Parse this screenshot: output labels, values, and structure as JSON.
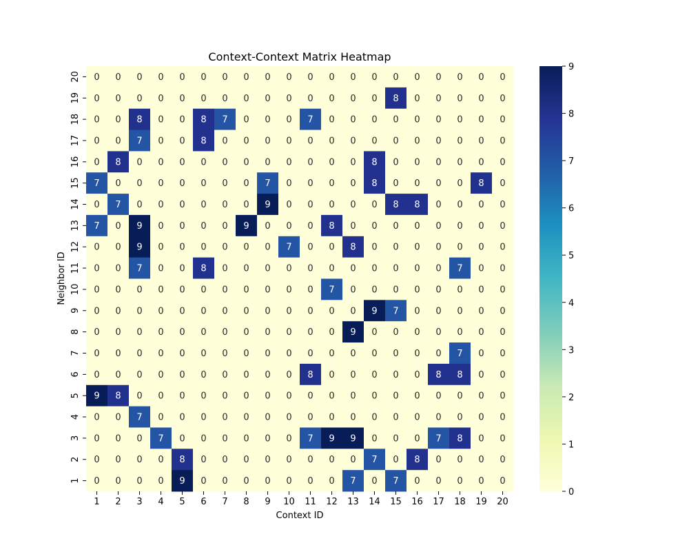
{
  "chart_data": {
    "type": "heatmap",
    "title": "Context-Context Matrix Heatmap",
    "xlabel": "Context ID",
    "ylabel": "Neighbor ID",
    "x_categories": [
      "1",
      "2",
      "3",
      "4",
      "5",
      "6",
      "7",
      "8",
      "9",
      "10",
      "11",
      "12",
      "13",
      "14",
      "15",
      "16",
      "17",
      "18",
      "19",
      "20"
    ],
    "y_categories": [
      "20",
      "19",
      "18",
      "17",
      "16",
      "15",
      "14",
      "13",
      "12",
      "11",
      "10",
      "9",
      "8",
      "7",
      "6",
      "5",
      "4",
      "3",
      "2",
      "1"
    ],
    "values": [
      [
        0,
        0,
        0,
        0,
        0,
        0,
        0,
        0,
        0,
        0,
        0,
        0,
        0,
        0,
        0,
        0,
        0,
        0,
        0,
        0
      ],
      [
        0,
        0,
        0,
        0,
        0,
        0,
        0,
        0,
        0,
        0,
        0,
        0,
        0,
        0,
        8,
        0,
        0,
        0,
        0,
        0
      ],
      [
        0,
        0,
        8,
        0,
        0,
        8,
        7,
        0,
        0,
        0,
        7,
        0,
        0,
        0,
        0,
        0,
        0,
        0,
        0,
        0
      ],
      [
        0,
        0,
        7,
        0,
        0,
        8,
        0,
        0,
        0,
        0,
        0,
        0,
        0,
        0,
        0,
        0,
        0,
        0,
        0,
        0
      ],
      [
        0,
        8,
        0,
        0,
        0,
        0,
        0,
        0,
        0,
        0,
        0,
        0,
        0,
        8,
        0,
        0,
        0,
        0,
        0,
        0
      ],
      [
        7,
        0,
        0,
        0,
        0,
        0,
        0,
        0,
        7,
        0,
        0,
        0,
        0,
        8,
        0,
        0,
        0,
        0,
        8,
        0
      ],
      [
        0,
        7,
        0,
        0,
        0,
        0,
        0,
        0,
        9,
        0,
        0,
        0,
        0,
        0,
        8,
        8,
        0,
        0,
        0,
        0
      ],
      [
        7,
        0,
        9,
        0,
        0,
        0,
        0,
        9,
        0,
        0,
        0,
        8,
        0,
        0,
        0,
        0,
        0,
        0,
        0,
        0
      ],
      [
        0,
        0,
        9,
        0,
        0,
        0,
        0,
        0,
        0,
        7,
        0,
        0,
        8,
        0,
        0,
        0,
        0,
        0,
        0,
        0
      ],
      [
        0,
        0,
        7,
        0,
        0,
        8,
        0,
        0,
        0,
        0,
        0,
        0,
        0,
        0,
        0,
        0,
        0,
        7,
        0,
        0
      ],
      [
        0,
        0,
        0,
        0,
        0,
        0,
        0,
        0,
        0,
        0,
        0,
        7,
        0,
        0,
        0,
        0,
        0,
        0,
        0,
        0
      ],
      [
        0,
        0,
        0,
        0,
        0,
        0,
        0,
        0,
        0,
        0,
        0,
        0,
        0,
        9,
        7,
        0,
        0,
        0,
        0,
        0
      ],
      [
        0,
        0,
        0,
        0,
        0,
        0,
        0,
        0,
        0,
        0,
        0,
        0,
        9,
        0,
        0,
        0,
        0,
        0,
        0,
        0
      ],
      [
        0,
        0,
        0,
        0,
        0,
        0,
        0,
        0,
        0,
        0,
        0,
        0,
        0,
        0,
        0,
        0,
        0,
        7,
        0,
        0
      ],
      [
        0,
        0,
        0,
        0,
        0,
        0,
        0,
        0,
        0,
        0,
        8,
        0,
        0,
        0,
        0,
        0,
        8,
        8,
        0,
        0
      ],
      [
        9,
        8,
        0,
        0,
        0,
        0,
        0,
        0,
        0,
        0,
        0,
        0,
        0,
        0,
        0,
        0,
        0,
        0,
        0,
        0
      ],
      [
        0,
        0,
        7,
        0,
        0,
        0,
        0,
        0,
        0,
        0,
        0,
        0,
        0,
        0,
        0,
        0,
        0,
        0,
        0,
        0
      ],
      [
        0,
        0,
        0,
        7,
        0,
        0,
        0,
        0,
        0,
        0,
        7,
        9,
        9,
        0,
        0,
        0,
        7,
        8,
        0,
        0
      ],
      [
        0,
        0,
        0,
        0,
        8,
        0,
        0,
        0,
        0,
        0,
        0,
        0,
        0,
        7,
        0,
        8,
        0,
        0,
        0,
        0
      ],
      [
        0,
        0,
        0,
        0,
        9,
        0,
        0,
        0,
        0,
        0,
        0,
        0,
        7,
        0,
        7,
        0,
        0,
        0,
        0,
        0
      ]
    ],
    "colorbar": {
      "min": 0,
      "max": 9,
      "ticks": [
        "0",
        "1",
        "2",
        "3",
        "4",
        "5",
        "6",
        "7",
        "8",
        "9"
      ],
      "colormap": "YlGnBu",
      "stops": [
        "#ffffd9",
        "#edf8b1",
        "#c7e9b4",
        "#7fcdbb",
        "#41b6c4",
        "#1d91c0",
        "#225ea8",
        "#253494",
        "#081d58"
      ]
    },
    "annotation_text_colors": {
      "low": "#262626",
      "high": "#ffffff"
    }
  }
}
